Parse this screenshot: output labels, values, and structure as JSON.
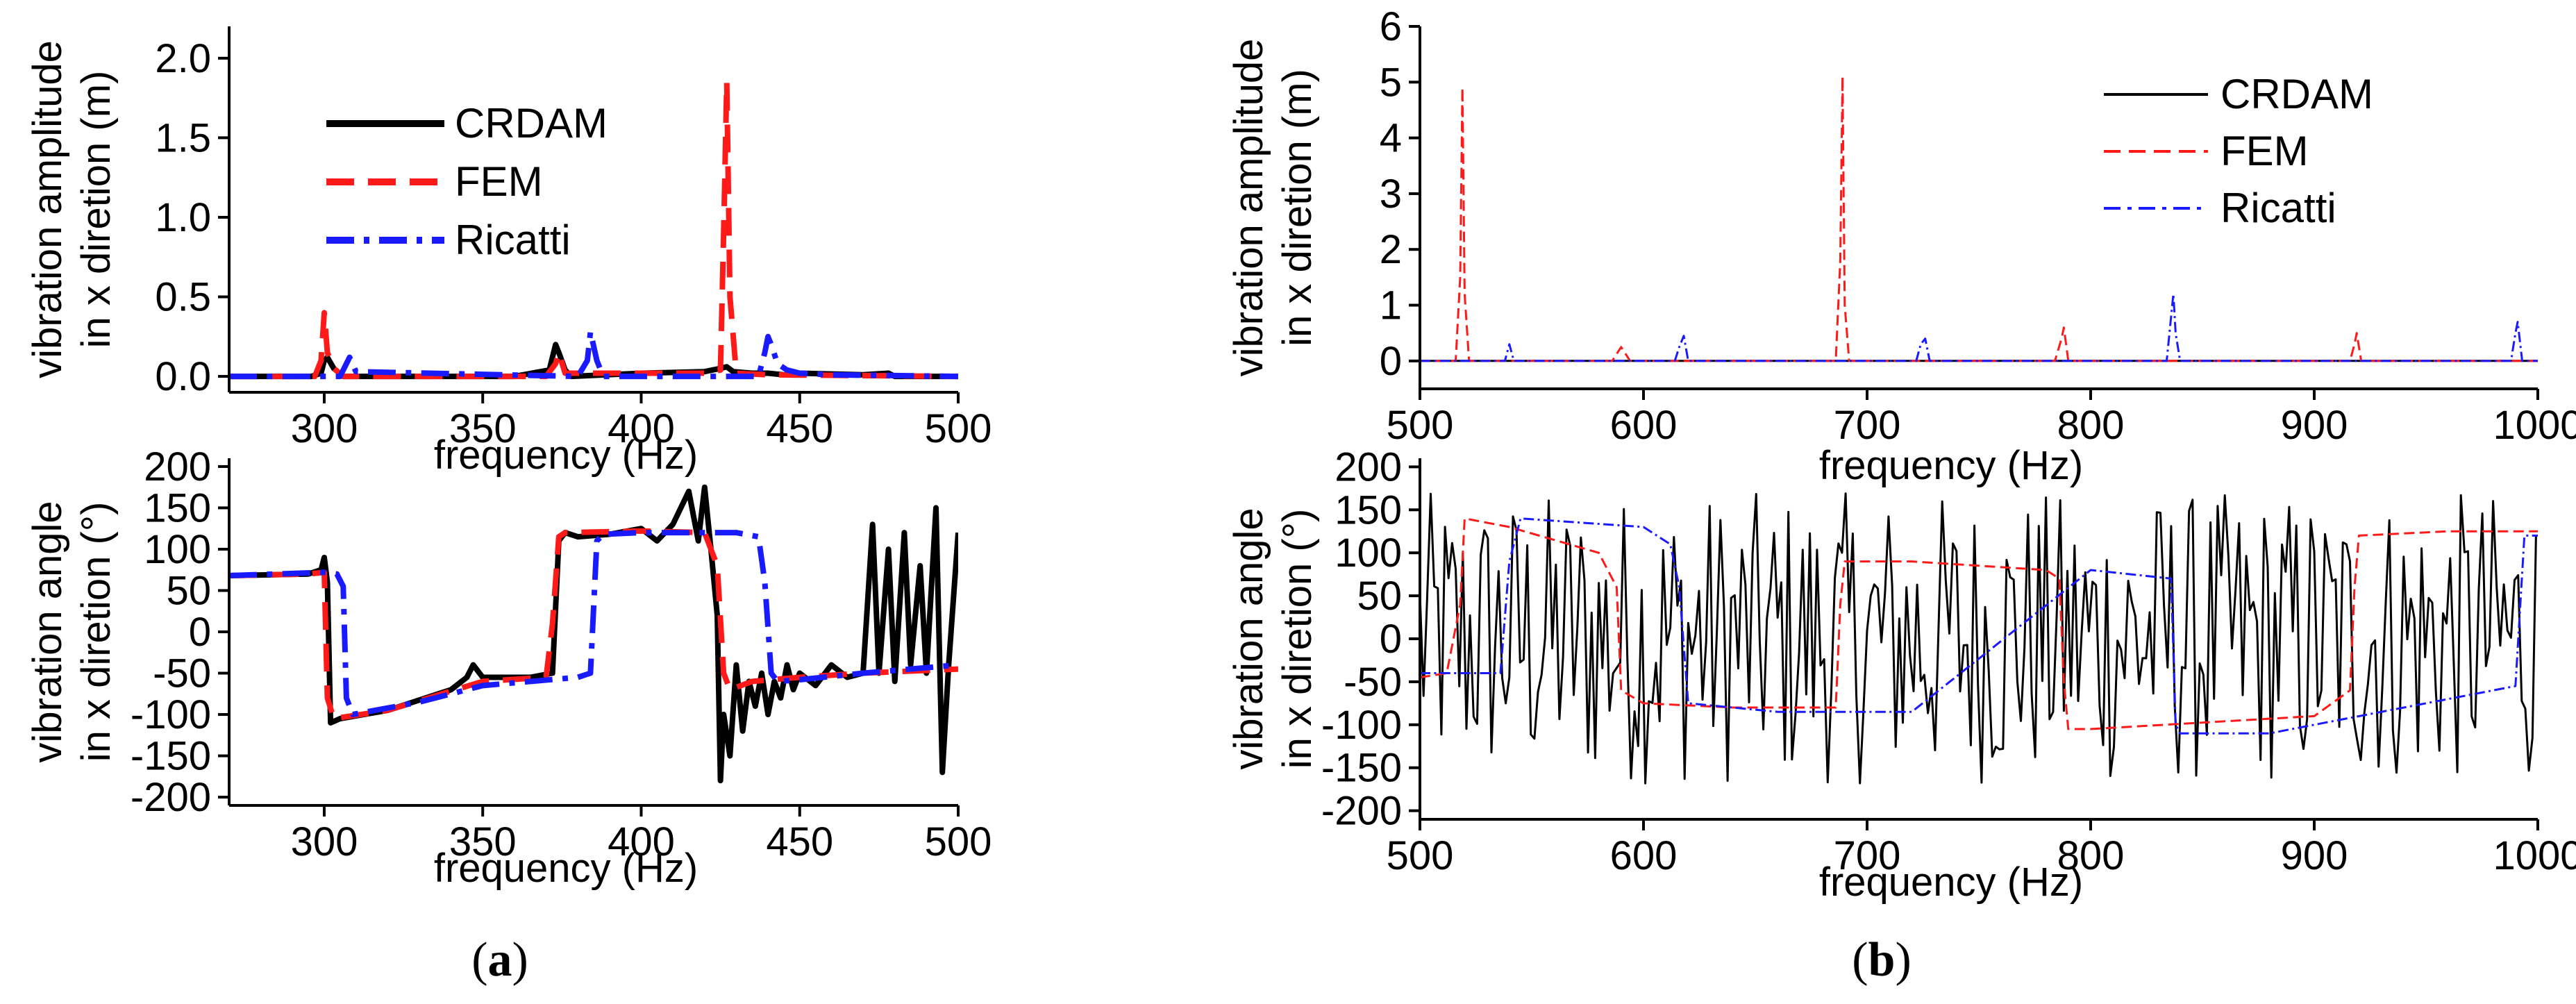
{
  "chart_data": [
    {
      "id": "a_top",
      "type": "line",
      "ylabel_lines": [
        "vibration amplitude",
        "in x diretion (m)"
      ],
      "xlabel": "frequency (Hz)",
      "xlim": [
        270,
        500
      ],
      "ylim": [
        -0.1,
        2.2
      ],
      "xticks": [
        300,
        350,
        400,
        450,
        500
      ],
      "yticks": [
        0.0,
        0.5,
        1.0,
        1.5,
        2.0
      ],
      "ytick_labels": [
        "0.0",
        "0.5",
        "1.0",
        "1.5",
        "2.0"
      ],
      "legend_position": "top-left",
      "series": [
        {
          "name": "CRDAM",
          "color": "#000000",
          "style": "solid",
          "x": [
            270,
            296,
            299,
            300,
            301,
            303,
            306,
            360,
            371,
            373,
            374,
            376,
            378,
            400,
            420,
            425,
            427,
            429,
            435,
            440,
            445,
            450,
            470,
            478,
            480,
            500
          ],
          "y": [
            0,
            0,
            0.02,
            0.1,
            0.12,
            0.05,
            0,
            0,
            0.04,
            0.2,
            0.15,
            0.04,
            0,
            0.02,
            0.03,
            0.05,
            0.06,
            0.03,
            0.02,
            0.02,
            0.01,
            0.02,
            0.01,
            0.02,
            0,
            0
          ]
        },
        {
          "name": "FEM",
          "color": "#ff1a1a",
          "style": "dashed",
          "x": [
            270,
            297,
            299,
            300,
            301,
            303,
            306,
            370,
            373,
            374,
            376,
            420,
            425,
            426,
            427,
            428,
            430,
            440,
            500
          ],
          "y": [
            0,
            0,
            0.1,
            0.4,
            0.15,
            0.05,
            0,
            0,
            0.08,
            0.15,
            0.02,
            0.02,
            0.04,
            0.9,
            1.85,
            0.5,
            0.02,
            0.01,
            0
          ]
        },
        {
          "name": "Ricatti",
          "color": "#1a1aff",
          "style": "dashdot",
          "x": [
            270,
            305,
            307,
            308,
            310,
            380,
            383,
            384,
            386,
            388,
            437,
            439,
            440,
            441,
            443,
            446,
            450,
            460,
            500
          ],
          "y": [
            0,
            0,
            0.08,
            0.12,
            0.03,
            0,
            0.1,
            0.28,
            0.1,
            0,
            0,
            0.15,
            0.25,
            0.2,
            0.08,
            0.04,
            0.02,
            0.01,
            0
          ]
        }
      ]
    },
    {
      "id": "a_bottom",
      "type": "line",
      "ylabel_lines": [
        "vibration angle",
        "in x diretion (°)"
      ],
      "xlabel": "frequency (Hz)",
      "xlim": [
        270,
        500
      ],
      "ylim": [
        -210,
        210
      ],
      "xticks": [
        300,
        350,
        400,
        450,
        500
      ],
      "yticks": [
        -200,
        -150,
        -100,
        -50,
        0,
        50,
        100,
        150,
        200
      ],
      "ytick_labels": [
        "-200",
        "-150",
        "-100",
        "-50",
        "0",
        "50",
        "100",
        "150",
        "200"
      ],
      "series": [
        {
          "name": "CRDAM",
          "color": "#000000",
          "style": "solid",
          "x": [
            270,
            295,
            299,
            300,
            301,
            302,
            305,
            320,
            340,
            345,
            347,
            350,
            365,
            372,
            374,
            376,
            380,
            390,
            400,
            405,
            410,
            415,
            418,
            420,
            422,
            424,
            425,
            426,
            428,
            430,
            432,
            434,
            436,
            438,
            440,
            442,
            444,
            446,
            448,
            450,
            455,
            460,
            465,
            470,
            473,
            475,
            478,
            480,
            483,
            485,
            488,
            490,
            493,
            495,
            497,
            500
          ],
          "y": [
            68,
            70,
            75,
            90,
            60,
            -110,
            -105,
            -95,
            -70,
            -55,
            -40,
            -55,
            -55,
            -50,
            110,
            120,
            115,
            118,
            125,
            110,
            130,
            170,
            110,
            175,
            100,
            20,
            -180,
            -100,
            -150,
            -40,
            -120,
            -60,
            -90,
            -50,
            -100,
            -60,
            -80,
            -40,
            -70,
            -50,
            -65,
            -40,
            -55,
            -50,
            130,
            -50,
            100,
            -60,
            120,
            -40,
            80,
            -50,
            150,
            -170,
            -40,
            120
          ]
        },
        {
          "name": "FEM",
          "color": "#ff1a1a",
          "style": "dashed",
          "x": [
            270,
            295,
            300,
            301,
            303,
            320,
            350,
            370,
            372,
            374,
            376,
            400,
            420,
            424,
            426,
            428,
            435,
            450,
            470,
            500
          ],
          "y": [
            68,
            70,
            72,
            -80,
            -105,
            -95,
            -60,
            -55,
            10,
            115,
            120,
            122,
            120,
            80,
            -50,
            -70,
            -60,
            -55,
            -50,
            -45
          ]
        },
        {
          "name": "Ricatti",
          "color": "#1a1aff",
          "style": "dashdot",
          "x": [
            270,
            300,
            304,
            306,
            307,
            309,
            330,
            350,
            380,
            384,
            386,
            388,
            400,
            430,
            437,
            439,
            441,
            443,
            450,
            470,
            500
          ],
          "y": [
            68,
            72,
            70,
            55,
            -80,
            -100,
            -85,
            -65,
            -55,
            -50,
            110,
            118,
            120,
            120,
            115,
            60,
            -50,
            -60,
            -58,
            -50,
            -40
          ]
        }
      ]
    },
    {
      "id": "b_top",
      "type": "line",
      "ylabel_lines": [
        "vibration amplitude",
        "in x diretion (m)"
      ],
      "xlabel": "frequency (Hz)",
      "xlim": [
        500,
        1000
      ],
      "ylim": [
        -0.5,
        6
      ],
      "xticks": [
        500,
        600,
        700,
        800,
        900,
        1000
      ],
      "yticks": [
        0,
        1,
        2,
        3,
        4,
        5,
        6
      ],
      "ytick_labels": [
        "0",
        "1",
        "2",
        "3",
        "4",
        "5",
        "6"
      ],
      "legend_position": "top-right",
      "series": [
        {
          "name": "CRDAM",
          "color": "#000000",
          "style": "solid",
          "x": [
            500,
            1000
          ],
          "y": [
            0,
            0
          ]
        },
        {
          "name": "FEM",
          "color": "#ff1a1a",
          "style": "dashed",
          "x": [
            500,
            516,
            518,
            519,
            520,
            522,
            586,
            590,
            594,
            686,
            688,
            689,
            690,
            692,
            784,
            787,
            788,
            790,
            916,
            918,
            919,
            921,
            1000
          ],
          "y": [
            0,
            0,
            1.5,
            4.9,
            1.2,
            0,
            0,
            0.25,
            0,
            0,
            1.8,
            5.1,
            1.0,
            0,
            0,
            0.4,
            0.6,
            0,
            0,
            0.3,
            0.5,
            0,
            0
          ]
        },
        {
          "name": "Ricatti",
          "color": "#1a1aff",
          "style": "dashdot",
          "x": [
            500,
            538,
            540,
            542,
            614,
            616,
            618,
            620,
            722,
            724,
            726,
            728,
            834,
            836,
            837,
            838,
            840,
            988,
            990,
            991,
            993,
            1000
          ],
          "y": [
            0,
            0,
            0.3,
            0,
            0,
            0.25,
            0.45,
            0,
            0,
            0.3,
            0.4,
            0,
            0,
            0.8,
            1.2,
            0.5,
            0,
            0,
            0.5,
            0.7,
            0,
            0
          ]
        }
      ]
    },
    {
      "id": "b_bottom",
      "type": "line",
      "ylabel_lines": [
        "vibration angle",
        "in x diretion (°)"
      ],
      "xlabel": "frequency (Hz)",
      "xlim": [
        500,
        1000
      ],
      "ylim": [
        -210,
        210
      ],
      "xticks": [
        500,
        600,
        700,
        800,
        900,
        1000
      ],
      "yticks": [
        -200,
        -150,
        -100,
        -50,
        0,
        50,
        100,
        150,
        200
      ],
      "ytick_labels": [
        "-200",
        "-150",
        "-100",
        "-50",
        "0",
        "50",
        "100",
        "150",
        "200"
      ],
      "series": [
        {
          "name": "CRDAM",
          "color": "#000000",
          "style": "solid",
          "noise": true,
          "x": [
            500,
            1000
          ],
          "y": [
            -170,
            170
          ]
        },
        {
          "name": "FEM",
          "color": "#ff1a1a",
          "style": "dashed",
          "x": [
            500,
            512,
            518,
            520,
            540,
            580,
            588,
            590,
            600,
            640,
            686,
            688,
            690,
            720,
            780,
            786,
            788,
            790,
            800,
            900,
            916,
            918,
            920,
            960,
            1000
          ],
          "y": [
            -45,
            -40,
            40,
            140,
            130,
            100,
            60,
            -60,
            -75,
            -80,
            -80,
            40,
            90,
            90,
            80,
            70,
            -50,
            -105,
            -105,
            -90,
            -60,
            60,
            120,
            125,
            125
          ]
        },
        {
          "name": "Ricatti",
          "color": "#1a1aff",
          "style": "dashdot",
          "x": [
            500,
            536,
            540,
            545,
            600,
            612,
            616,
            620,
            660,
            720,
            800,
            836,
            838,
            840,
            880,
            960,
            990,
            994,
            1000
          ],
          "y": [
            -40,
            -40,
            90,
            140,
            130,
            110,
            60,
            -75,
            -85,
            -85,
            80,
            70,
            -100,
            -110,
            -110,
            -70,
            -55,
            120,
            120
          ]
        }
      ]
    }
  ],
  "panel_labels": [
    "(a)",
    "(b)"
  ],
  "panel_letters": [
    "a",
    "b"
  ],
  "legend": {
    "entries": [
      "CRDAM",
      "FEM",
      "Ricatti"
    ]
  }
}
